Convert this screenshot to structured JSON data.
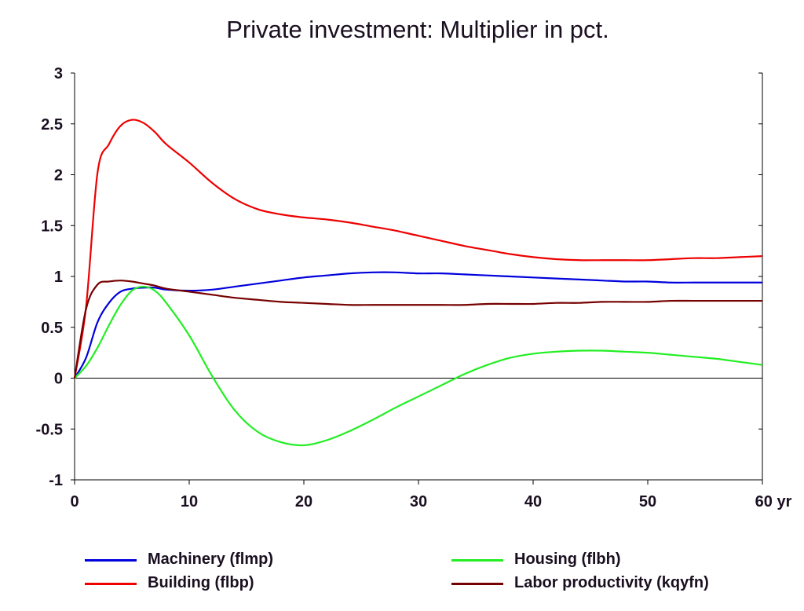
{
  "chart_data": {
    "type": "line",
    "title": "Private investment: Multiplier in pct.",
    "xlabel": "",
    "ylabel": "",
    "xlim": [
      0,
      60
    ],
    "ylim": [
      -1,
      3
    ],
    "x_ticks": [
      "0",
      "10",
      "20",
      "30",
      "40",
      "50",
      "60 yr"
    ],
    "x_tick_values": [
      0,
      10,
      20,
      30,
      40,
      50,
      60
    ],
    "y_ticks": [
      "-1",
      "-0.5",
      "0",
      "0.5",
      "1",
      "1.5",
      "2",
      "2.5",
      "3"
    ],
    "y_tick_values": [
      -1,
      -0.5,
      0,
      0.5,
      1,
      1.5,
      2,
      2.5,
      3
    ],
    "grid": false,
    "legend_position": "bottom",
    "x": [
      0,
      1,
      2,
      3,
      4,
      5,
      6,
      7,
      8,
      10,
      12,
      14,
      16,
      18,
      20,
      22,
      24,
      26,
      28,
      30,
      32,
      34,
      36,
      38,
      40,
      42,
      44,
      46,
      48,
      50,
      52,
      54,
      56,
      58,
      60
    ],
    "series": [
      {
        "name": "Machinery (flmp)",
        "color": "#0000dd",
        "values": [
          0,
          0.2,
          0.55,
          0.74,
          0.85,
          0.88,
          0.89,
          0.89,
          0.87,
          0.86,
          0.87,
          0.9,
          0.93,
          0.96,
          0.99,
          1.01,
          1.03,
          1.04,
          1.04,
          1.03,
          1.03,
          1.02,
          1.01,
          1.0,
          0.99,
          0.98,
          0.97,
          0.96,
          0.95,
          0.95,
          0.94,
          0.94,
          0.94,
          0.94,
          0.94
        ]
      },
      {
        "name": "Building (flbp)",
        "color": "#ee0000",
        "values": [
          0,
          0.7,
          2.02,
          2.3,
          2.48,
          2.54,
          2.51,
          2.42,
          2.3,
          2.12,
          1.92,
          1.76,
          1.66,
          1.61,
          1.58,
          1.56,
          1.53,
          1.49,
          1.45,
          1.4,
          1.35,
          1.3,
          1.26,
          1.22,
          1.19,
          1.17,
          1.16,
          1.16,
          1.16,
          1.16,
          1.17,
          1.18,
          1.18,
          1.19,
          1.2
        ]
      },
      {
        "name": "Housing (flbh)",
        "color": "#22ee22",
        "values": [
          0,
          0.12,
          0.3,
          0.52,
          0.72,
          0.86,
          0.9,
          0.86,
          0.74,
          0.42,
          0.02,
          -0.32,
          -0.53,
          -0.63,
          -0.66,
          -0.61,
          -0.52,
          -0.41,
          -0.29,
          -0.18,
          -0.07,
          0.04,
          0.13,
          0.2,
          0.24,
          0.26,
          0.27,
          0.27,
          0.26,
          0.25,
          0.23,
          0.21,
          0.19,
          0.16,
          0.13
        ]
      },
      {
        "name": "Labor productivity (kqyfn)",
        "color": "#770000",
        "values": [
          0,
          0.68,
          0.92,
          0.95,
          0.96,
          0.95,
          0.93,
          0.91,
          0.88,
          0.85,
          0.82,
          0.79,
          0.77,
          0.75,
          0.74,
          0.73,
          0.72,
          0.72,
          0.72,
          0.72,
          0.72,
          0.72,
          0.73,
          0.73,
          0.73,
          0.74,
          0.74,
          0.75,
          0.75,
          0.75,
          0.76,
          0.76,
          0.76,
          0.76,
          0.76
        ]
      }
    ]
  }
}
